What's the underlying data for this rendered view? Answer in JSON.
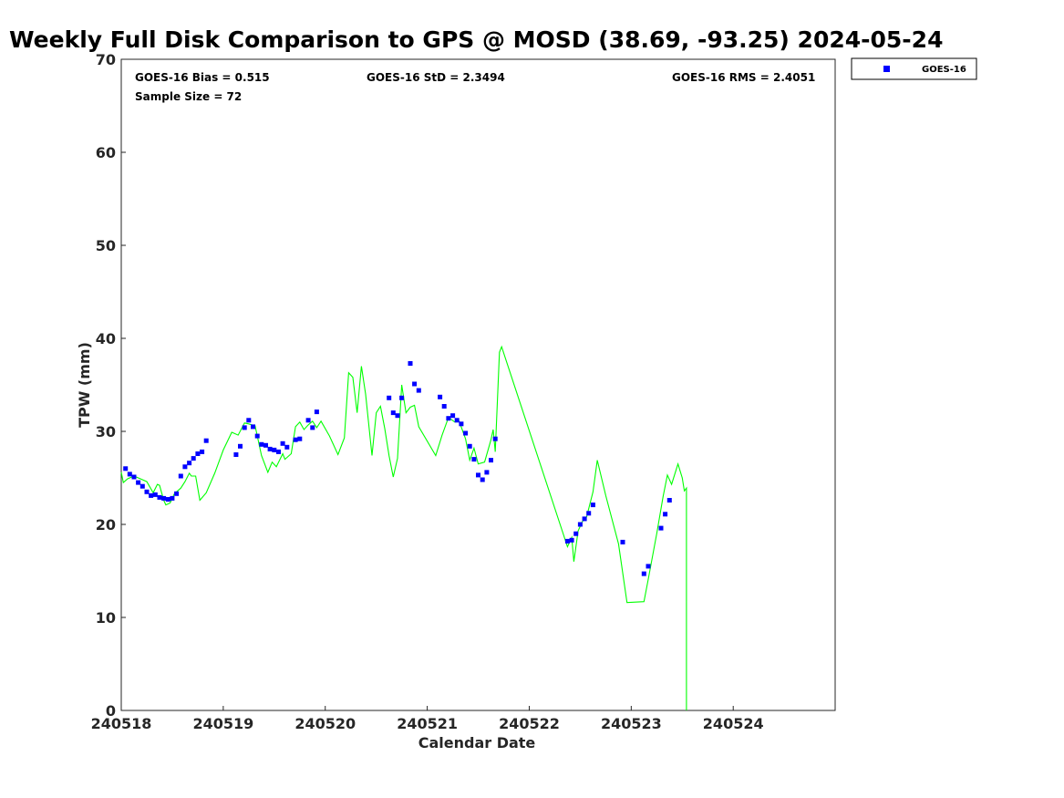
{
  "chart_data": {
    "type": "scatter",
    "title": "Weekly Full Disk Comparison to GPS @ MOSD (38.69, -93.25) 2024-05-24",
    "xlabel": "Calendar Date",
    "ylabel": "TPW (mm)",
    "xlim": [
      "2024-05-18 00:00",
      "2024-05-24 23:59"
    ],
    "ylim": [
      0,
      70
    ],
    "x_tick_labels": [
      "240518",
      "240519",
      "240520",
      "240521",
      "240522",
      "240523",
      "240524"
    ],
    "y_tick_labels": [
      "0",
      "10",
      "20",
      "30",
      "40",
      "50",
      "60",
      "70"
    ],
    "grid": false,
    "legend_position": "top-right",
    "stats": {
      "bias": "GOES-16 Bias = 0.515",
      "std": "GOES-16 StD = 2.3494",
      "rms": "GOES-16 RMS = 2.4051",
      "sample": "Sample Size = 72"
    },
    "colors": {
      "goes": "#0000ff",
      "gps": "#00ff00"
    },
    "series": [
      {
        "name": "GOES-16",
        "role": "scatter",
        "points": [
          [
            "2024-05-18 01:00",
            26.0
          ],
          [
            "2024-05-18 02:00",
            25.4
          ],
          [
            "2024-05-18 03:00",
            25.1
          ],
          [
            "2024-05-18 04:00",
            24.5
          ],
          [
            "2024-05-18 05:00",
            24.1
          ],
          [
            "2024-05-18 06:00",
            23.5
          ],
          [
            "2024-05-18 07:00",
            23.1
          ],
          [
            "2024-05-18 08:00",
            23.2
          ],
          [
            "2024-05-18 09:00",
            22.9
          ],
          [
            "2024-05-18 10:00",
            22.8
          ],
          [
            "2024-05-18 11:00",
            22.7
          ],
          [
            "2024-05-18 12:00",
            22.8
          ],
          [
            "2024-05-18 13:00",
            23.3
          ],
          [
            "2024-05-18 14:00",
            25.2
          ],
          [
            "2024-05-18 15:00",
            26.2
          ],
          [
            "2024-05-18 16:00",
            26.6
          ],
          [
            "2024-05-18 17:00",
            27.1
          ],
          [
            "2024-05-18 18:00",
            27.6
          ],
          [
            "2024-05-18 19:00",
            27.8
          ],
          [
            "2024-05-18 20:00",
            29.0
          ],
          [
            "2024-05-19 03:00",
            27.5
          ],
          [
            "2024-05-19 04:00",
            28.4
          ],
          [
            "2024-05-19 05:00",
            30.4
          ],
          [
            "2024-05-19 06:00",
            31.2
          ],
          [
            "2024-05-19 07:00",
            30.5
          ],
          [
            "2024-05-19 08:00",
            29.5
          ],
          [
            "2024-05-19 09:00",
            28.6
          ],
          [
            "2024-05-19 10:00",
            28.5
          ],
          [
            "2024-05-19 11:00",
            28.1
          ],
          [
            "2024-05-19 12:00",
            28.0
          ],
          [
            "2024-05-19 13:00",
            27.8
          ],
          [
            "2024-05-19 14:00",
            28.7
          ],
          [
            "2024-05-19 15:00",
            28.3
          ],
          [
            "2024-05-19 17:00",
            29.1
          ],
          [
            "2024-05-19 18:00",
            29.2
          ],
          [
            "2024-05-19 20:00",
            31.2
          ],
          [
            "2024-05-19 21:00",
            30.4
          ],
          [
            "2024-05-19 22:00",
            32.1
          ],
          [
            "2024-05-20 15:00",
            33.6
          ],
          [
            "2024-05-20 16:00",
            32.0
          ],
          [
            "2024-05-20 17:00",
            31.7
          ],
          [
            "2024-05-20 18:00",
            33.6
          ],
          [
            "2024-05-20 20:00",
            37.3
          ],
          [
            "2024-05-20 21:00",
            35.1
          ],
          [
            "2024-05-20 22:00",
            34.4
          ],
          [
            "2024-05-21 03:00",
            33.7
          ],
          [
            "2024-05-21 04:00",
            32.7
          ],
          [
            "2024-05-21 05:00",
            31.4
          ],
          [
            "2024-05-21 06:00",
            31.7
          ],
          [
            "2024-05-21 07:00",
            31.2
          ],
          [
            "2024-05-21 08:00",
            30.8
          ],
          [
            "2024-05-21 09:00",
            29.8
          ],
          [
            "2024-05-21 10:00",
            28.4
          ],
          [
            "2024-05-21 11:00",
            27.0
          ],
          [
            "2024-05-21 12:00",
            25.3
          ],
          [
            "2024-05-21 13:00",
            24.8
          ],
          [
            "2024-05-21 14:00",
            25.6
          ],
          [
            "2024-05-21 15:00",
            26.9
          ],
          [
            "2024-05-21 16:00",
            29.2
          ],
          [
            "2024-05-22 09:00",
            18.2
          ],
          [
            "2024-05-22 10:00",
            18.3
          ],
          [
            "2024-05-22 11:00",
            19.0
          ],
          [
            "2024-05-22 12:00",
            20.0
          ],
          [
            "2024-05-22 13:00",
            20.6
          ],
          [
            "2024-05-22 14:00",
            21.2
          ],
          [
            "2024-05-22 15:00",
            22.1
          ],
          [
            "2024-05-22 22:00",
            18.1
          ],
          [
            "2024-05-23 03:00",
            14.7
          ],
          [
            "2024-05-23 04:00",
            15.5
          ],
          [
            "2024-05-23 07:00",
            19.6
          ],
          [
            "2024-05-23 08:00",
            21.1
          ],
          [
            "2024-05-23 09:00",
            22.6
          ]
        ]
      },
      {
        "role": "line",
        "points": [
          [
            "2024-05-18 00:00",
            25.6
          ],
          [
            "2024-05-18 00:30",
            24.5
          ],
          [
            "2024-05-18 01:30",
            24.9
          ],
          [
            "2024-05-18 03:00",
            25.2
          ],
          [
            "2024-05-18 04:30",
            24.9
          ],
          [
            "2024-05-18 06:00",
            24.6
          ],
          [
            "2024-05-18 07:30",
            23.4
          ],
          [
            "2024-05-18 08:30",
            24.3
          ],
          [
            "2024-05-18 09:00",
            24.2
          ],
          [
            "2024-05-18 10:00",
            22.6
          ],
          [
            "2024-05-18 10:30",
            22.1
          ],
          [
            "2024-05-18 11:30",
            22.3
          ],
          [
            "2024-05-18 12:30",
            23.3
          ],
          [
            "2024-05-18 14:00",
            23.9
          ],
          [
            "2024-05-18 15:00",
            24.6
          ],
          [
            "2024-05-18 16:00",
            25.5
          ],
          [
            "2024-05-18 16:30",
            25.2
          ],
          [
            "2024-05-18 17:30",
            25.2
          ],
          [
            "2024-05-18 18:30",
            22.6
          ],
          [
            "2024-05-18 20:00",
            23.4
          ],
          [
            "2024-05-18 22:00",
            25.5
          ],
          [
            "2024-05-19 00:00",
            28.0
          ],
          [
            "2024-05-19 02:00",
            29.9
          ],
          [
            "2024-05-19 03:30",
            29.6
          ],
          [
            "2024-05-19 05:00",
            30.9
          ],
          [
            "2024-05-19 06:00",
            30.8
          ],
          [
            "2024-05-19 07:30",
            30.6
          ],
          [
            "2024-05-19 09:00",
            27.4
          ],
          [
            "2024-05-19 10:30",
            25.6
          ],
          [
            "2024-05-19 11:30",
            26.7
          ],
          [
            "2024-05-19 12:30",
            26.2
          ],
          [
            "2024-05-19 14:00",
            27.6
          ],
          [
            "2024-05-19 14:30",
            27.0
          ],
          [
            "2024-05-19 16:00",
            27.6
          ],
          [
            "2024-05-19 17:00",
            30.5
          ],
          [
            "2024-05-19 18:00",
            31.0
          ],
          [
            "2024-05-19 19:00",
            30.2
          ],
          [
            "2024-05-19 20:00",
            30.7
          ],
          [
            "2024-05-19 21:00",
            31.1
          ],
          [
            "2024-05-19 22:00",
            30.4
          ],
          [
            "2024-05-19 23:00",
            31.1
          ],
          [
            "2024-05-20 01:00",
            29.5
          ],
          [
            "2024-05-20 03:00",
            27.5
          ],
          [
            "2024-05-20 04:30",
            29.3
          ],
          [
            "2024-05-20 05:30",
            36.3
          ],
          [
            "2024-05-20 06:30",
            35.8
          ],
          [
            "2024-05-20 07:30",
            32.0
          ],
          [
            "2024-05-20 08:30",
            37.0
          ],
          [
            "2024-05-20 09:30",
            34.0
          ],
          [
            "2024-05-20 11:00",
            27.4
          ],
          [
            "2024-05-20 12:00",
            32.0
          ],
          [
            "2024-05-20 13:00",
            32.7
          ],
          [
            "2024-05-20 14:00",
            30.3
          ],
          [
            "2024-05-20 15:00",
            27.4
          ],
          [
            "2024-05-20 16:00",
            25.1
          ],
          [
            "2024-05-20 17:00",
            27.1
          ],
          [
            "2024-05-20 18:00",
            35.0
          ],
          [
            "2024-05-20 19:00",
            32.0
          ],
          [
            "2024-05-20 20:00",
            32.6
          ],
          [
            "2024-05-20 21:00",
            32.8
          ],
          [
            "2024-05-20 22:00",
            30.5
          ],
          [
            "2024-05-21 02:00",
            27.4
          ],
          [
            "2024-05-21 03:30",
            29.6
          ],
          [
            "2024-05-21 05:00",
            31.5
          ],
          [
            "2024-05-21 06:30",
            31.0
          ],
          [
            "2024-05-21 07:30",
            31.1
          ],
          [
            "2024-05-21 09:00",
            29.2
          ],
          [
            "2024-05-21 10:00",
            26.9
          ],
          [
            "2024-05-21 11:00",
            28.2
          ],
          [
            "2024-05-21 12:00",
            26.5
          ],
          [
            "2024-05-21 13:30",
            26.7
          ],
          [
            "2024-05-21 15:00",
            29.1
          ],
          [
            "2024-05-21 15:30",
            30.2
          ],
          [
            "2024-05-21 16:00",
            27.8
          ],
          [
            "2024-05-21 17:00",
            38.5
          ],
          [
            "2024-05-21 17:30",
            39.1
          ],
          [
            "2024-05-21 19:00",
            37.0
          ],
          [
            "2024-05-22 09:00",
            17.6
          ],
          [
            "2024-05-22 10:00",
            18.6
          ],
          [
            "2024-05-22 10:30",
            16.0
          ],
          [
            "2024-05-22 11:30",
            19.3
          ],
          [
            "2024-05-22 12:30",
            20.3
          ],
          [
            "2024-05-22 13:30",
            20.8
          ],
          [
            "2024-05-22 15:00",
            23.5
          ],
          [
            "2024-05-22 16:00",
            26.9
          ],
          [
            "2024-05-22 18:00",
            23.1
          ],
          [
            "2024-05-22 21:00",
            17.9
          ],
          [
            "2024-05-22 23:00",
            11.6
          ],
          [
            "2024-05-23 03:00",
            11.7
          ],
          [
            "2024-05-23 04:00",
            14.1
          ],
          [
            "2024-05-23 06:00",
            19.0
          ],
          [
            "2024-05-23 07:30",
            23.0
          ],
          [
            "2024-05-23 08:30",
            25.3
          ],
          [
            "2024-05-23 09:00",
            24.8
          ],
          [
            "2024-05-23 09:30",
            24.3
          ],
          [
            "2024-05-23 11:00",
            26.5
          ],
          [
            "2024-05-23 12:00",
            25.0
          ],
          [
            "2024-05-23 12:30",
            23.6
          ],
          [
            "2024-05-23 13:00",
            23.9
          ],
          [
            "2024-05-23 13:00",
            0.0
          ]
        ]
      }
    ]
  }
}
